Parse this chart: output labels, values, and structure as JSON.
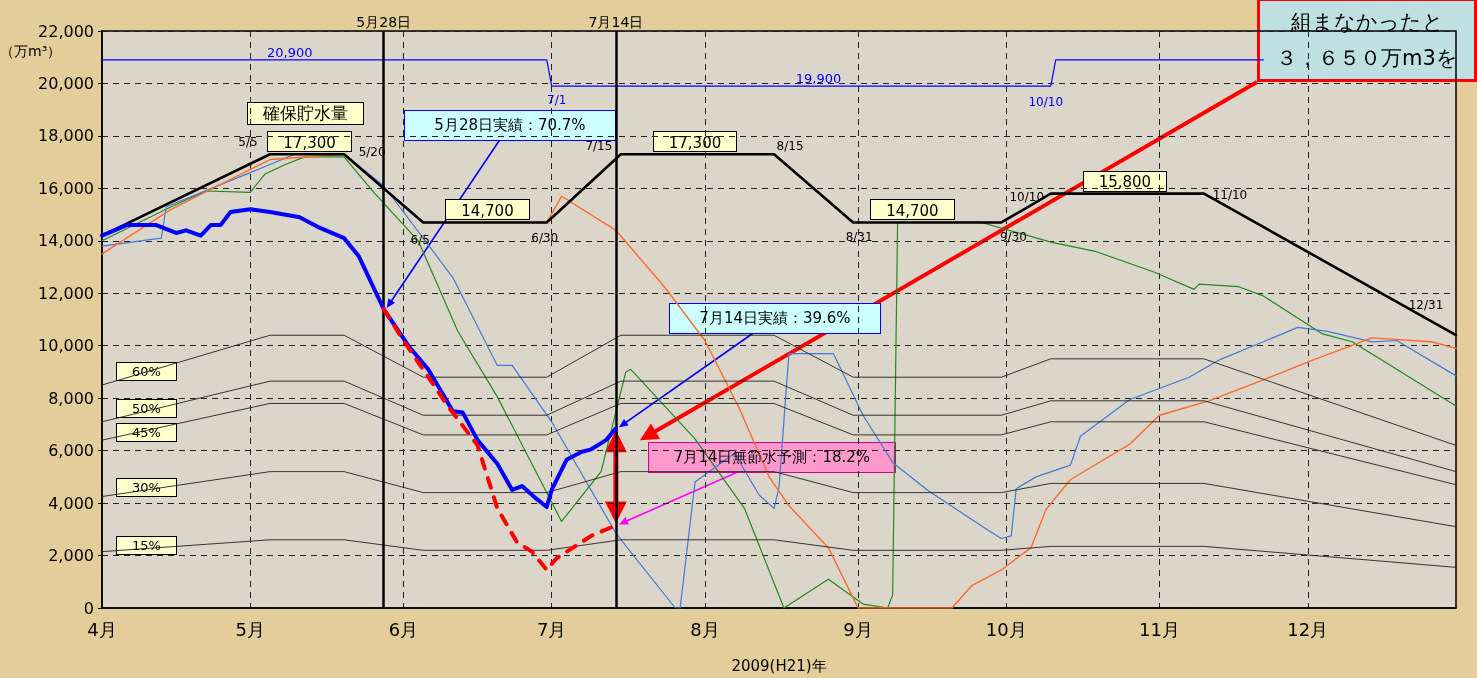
{
  "chart_data": {
    "type": "line",
    "xlabel": "2009(H21)年",
    "ylabel": "（万m³）",
    "xlim": [
      "2009-04-01",
      "2009-12-31"
    ],
    "xticks": [
      {
        "value": "2009-04-01",
        "label": "4月"
      },
      {
        "value": "2009-05-01",
        "label": "5月"
      },
      {
        "value": "2009-06-01",
        "label": "6月"
      },
      {
        "value": "2009-07-01",
        "label": "7月"
      },
      {
        "value": "2009-08-01",
        "label": "8月"
      },
      {
        "value": "2009-09-01",
        "label": "9月"
      },
      {
        "value": "2009-10-01",
        "label": "10月"
      },
      {
        "value": "2009-11-01",
        "label": "11月"
      },
      {
        "value": "2009-12-01",
        "label": "12月"
      }
    ],
    "ylim": [
      0,
      22000
    ],
    "yticks": [
      0,
      {
        "value": 2000,
        "label": "2,000"
      },
      {
        "value": 4000,
        "label": "4,000"
      },
      {
        "value": 6000,
        "label": "6,000"
      },
      {
        "value": 8000,
        "label": "8,000"
      },
      {
        "value": 10000,
        "label": "10,000"
      },
      {
        "value": 12000,
        "label": "12,000"
      },
      {
        "value": 14000,
        "label": "14,000"
      },
      {
        "value": 16000,
        "label": "16,000"
      },
      {
        "value": 18000,
        "label": "18,000"
      },
      {
        "value": 20000,
        "label": "20,000"
      },
      {
        "value": 22000,
        "label": "22,000"
      }
    ],
    "grid": true,
    "marker": "none",
    "series": [
      {
        "color": "#000000",
        "x": [
          "2009-04-01",
          "2009-05-05",
          "2009-05-13",
          "2009-05-20",
          "2009-06-05",
          "2009-06-18",
          "2009-06-30",
          "2009-07-15",
          "2009-07-30",
          "2009-08-15",
          "2009-08-31",
          "2009-09-12",
          "2009-09-30",
          "2009-10-10",
          "2009-10-25",
          "2009-11-10",
          "2009-12-31"
        ],
        "values": [
          14200,
          17300,
          17300,
          17300,
          14700,
          14700,
          14700,
          17300,
          17300,
          17300,
          14700,
          14700,
          14700,
          15800,
          15800,
          15800,
          10400
        ],
        "value_labels": [
          null,
          null,
          "17,300",
          null,
          null,
          "14,700",
          null,
          null,
          "17,300",
          null,
          null,
          "14,700",
          null,
          null,
          "15,800",
          null,
          null
        ]
      },
      {
        "color": "#0000ff",
        "x": [
          "2009-04-01",
          "2009-05-09",
          "2009-06-30",
          "2009-07-01",
          "2009-08-24",
          "2009-10-10",
          "2009-10-11",
          "2009-11-22"
        ],
        "values": [
          20900,
          20900,
          20900,
          19900,
          19900,
          19900,
          20900,
          20900
        ],
        "value_labels": [
          null,
          "20,900",
          null,
          null,
          "19,900",
          null,
          null,
          null
        ]
      },
      {
        "color": "#0000ff",
        "x": [
          "2009-04-01",
          "2009-04-06",
          "2009-04-12",
          "2009-04-16",
          "2009-04-18",
          "2009-04-21",
          "2009-04-23",
          "2009-04-25",
          "2009-04-27",
          "2009-05-01",
          "2009-05-05",
          "2009-05-11",
          "2009-05-15",
          "2009-05-20",
          "2009-05-23",
          "2009-05-28",
          "2009-06-02",
          "2009-06-06",
          "2009-06-11",
          "2009-06-13",
          "2009-06-16",
          "2009-06-20",
          "2009-06-23",
          "2009-06-25",
          "2009-06-28",
          "2009-06-30",
          "2009-07-01",
          "2009-07-04",
          "2009-07-07",
          "2009-07-09",
          "2009-07-12",
          "2009-07-14"
        ],
        "values": [
          14200,
          14600,
          14600,
          14300,
          14400,
          14200,
          14600,
          14600,
          15100,
          15200,
          15100,
          14900,
          14500,
          14100,
          13400,
          11400,
          10000,
          9100,
          7500,
          7450,
          6400,
          5500,
          4500,
          4650,
          4150,
          3850,
          4500,
          5650,
          5950,
          6050,
          6400,
          6850
        ]
      },
      {
        "color": "#ff0000",
        "line_style": "dashed",
        "x": [
          "2009-05-28",
          "2009-06-01",
          "2009-06-10",
          "2009-06-16",
          "2009-06-20",
          "2009-06-24",
          "2009-06-27",
          "2009-06-30",
          "2009-07-02",
          "2009-07-09",
          "2009-07-14"
        ],
        "values": [
          11400,
          10200,
          7700,
          6200,
          3800,
          2500,
          2150,
          1450,
          1900,
          2750,
          3150
        ]
      },
      {
        "color": "#1f8a1f",
        "x": [
          "2009-04-01",
          "2009-04-15",
          "2009-04-22",
          "2009-05-01",
          "2009-05-04",
          "2009-05-08",
          "2009-05-12",
          "2009-05-20",
          "2009-05-26",
          "2009-06-04",
          "2009-06-12",
          "2009-06-20",
          "2009-07-03",
          "2009-07-11",
          "2009-07-16",
          "2009-07-17",
          "2009-07-30",
          "2009-08-09",
          "2009-08-17",
          "2009-08-26",
          "2009-09-02",
          "2009-09-07",
          "2009-09-08",
          "2009-09-09",
          "2009-09-26",
          "2009-10-10",
          "2009-10-19",
          "2009-10-31",
          "2009-11-08",
          "2009-11-09",
          "2009-11-17",
          "2009-11-22",
          "2009-12-04",
          "2009-12-10",
          "2009-12-31"
        ],
        "values": [
          14000,
          15300,
          15900,
          15850,
          16550,
          16900,
          17200,
          17200,
          15850,
          14000,
          10550,
          8050,
          3300,
          5200,
          9000,
          9100,
          6450,
          3800,
          0,
          1100,
          150,
          0,
          500,
          14700,
          14700,
          13950,
          13600,
          12800,
          12150,
          12350,
          12250,
          11900,
          10450,
          10150,
          7700
        ]
      },
      {
        "color": "#3f7ad8",
        "x": [
          "2009-04-01",
          "2009-04-13",
          "2009-04-14",
          "2009-05-01",
          "2009-05-10",
          "2009-05-20",
          "2009-05-28",
          "2009-06-11",
          "2009-06-20",
          "2009-06-23",
          "2009-07-01",
          "2009-07-14",
          "2009-07-26",
          "2009-07-27",
          "2009-07-30",
          "2009-08-07",
          "2009-08-12",
          "2009-08-15",
          "2009-08-16",
          "2009-08-18",
          "2009-08-27",
          "2009-09-02",
          "2009-09-08",
          "2009-09-15",
          "2009-09-27",
          "2009-09-30",
          "2009-10-02",
          "2009-10-03",
          "2009-10-07",
          "2009-10-14",
          "2009-10-16",
          "2009-10-26",
          "2009-11-07",
          "2009-11-13",
          "2009-11-22",
          "2009-11-29",
          "2009-12-05",
          "2009-12-14",
          "2009-12-19",
          "2009-12-31"
        ],
        "values": [
          13800,
          14100,
          15300,
          16600,
          17300,
          17300,
          16100,
          12600,
          9250,
          9250,
          7100,
          2850,
          0,
          0,
          4800,
          5900,
          4300,
          3800,
          4600,
          9700,
          9700,
          7350,
          5550,
          4500,
          3000,
          2650,
          2750,
          4550,
          5000,
          5450,
          6550,
          7950,
          8800,
          9450,
          10150,
          10700,
          10550,
          10150,
          10200,
          8850
        ]
      },
      {
        "color": "#ff6a2a",
        "x": [
          "2009-04-01",
          "2009-04-15",
          "2009-05-05",
          "2009-05-20",
          "2009-06-05",
          "2009-06-30",
          "2009-07-03",
          "2009-07-14",
          "2009-07-24",
          "2009-08-01",
          "2009-08-08",
          "2009-08-14",
          "2009-08-18",
          "2009-08-26",
          "2009-09-01",
          "2009-09-20",
          "2009-09-24",
          "2009-09-30",
          "2009-10-06",
          "2009-10-09",
          "2009-10-14",
          "2009-10-26",
          "2009-11-01",
          "2009-11-11",
          "2009-11-22",
          "2009-12-02",
          "2009-12-14",
          "2009-12-26",
          "2009-12-31"
        ],
        "values": [
          13500,
          15200,
          17100,
          17300,
          14700,
          14700,
          15700,
          14400,
          12200,
          10200,
          7600,
          5000,
          3900,
          2300,
          0,
          0,
          850,
          1450,
          2300,
          3750,
          4900,
          6250,
          7350,
          7900,
          8700,
          9450,
          10300,
          10150,
          9900
        ]
      },
      {
        "color": "#222222",
        "x": [
          "2009-04-01",
          "2009-05-05",
          "2009-05-20",
          "2009-06-05",
          "2009-06-30",
          "2009-07-15",
          "2009-08-15",
          "2009-08-31",
          "2009-09-30",
          "2009-10-10",
          "2009-11-10",
          "2009-12-31"
        ],
        "values": [
          8500,
          10400,
          10400,
          8800,
          8800,
          10400,
          10400,
          8800,
          8800,
          9500,
          9500,
          6200
        ]
      },
      {
        "color": "#222222",
        "x": [
          "2009-04-01",
          "2009-05-05",
          "2009-05-20",
          "2009-06-05",
          "2009-06-30",
          "2009-07-15",
          "2009-08-15",
          "2009-08-31",
          "2009-09-30",
          "2009-10-10",
          "2009-11-10",
          "2009-12-31"
        ],
        "values": [
          7100,
          8650,
          8650,
          7350,
          7350,
          8650,
          8650,
          7350,
          7350,
          7900,
          7900,
          5200
        ]
      },
      {
        "color": "#222222",
        "x": [
          "2009-04-01",
          "2009-05-05",
          "2009-05-20",
          "2009-06-05",
          "2009-06-30",
          "2009-07-15",
          "2009-08-15",
          "2009-08-31",
          "2009-09-30",
          "2009-10-10",
          "2009-11-10",
          "2009-12-31"
        ],
        "values": [
          6400,
          7800,
          7800,
          6600,
          6600,
          7800,
          7800,
          6600,
          6600,
          7100,
          7100,
          4700
        ]
      },
      {
        "color": "#222222",
        "x": [
          "2009-04-01",
          "2009-05-05",
          "2009-05-20",
          "2009-06-05",
          "2009-06-30",
          "2009-07-15",
          "2009-08-15",
          "2009-08-31",
          "2009-09-30",
          "2009-10-10",
          "2009-11-10",
          "2009-12-31"
        ],
        "values": [
          4250,
          5200,
          5200,
          4400,
          4400,
          5200,
          5200,
          4400,
          4400,
          4750,
          4750,
          3100
        ]
      },
      {
        "color": "#222222",
        "x": [
          "2009-04-01",
          "2009-05-05",
          "2009-05-20",
          "2009-06-05",
          "2009-06-30",
          "2009-07-15",
          "2009-08-15",
          "2009-08-31",
          "2009-09-30",
          "2009-10-10",
          "2009-11-10",
          "2009-12-31"
        ],
        "values": [
          2150,
          2600,
          2600,
          2200,
          2200,
          2600,
          2600,
          2200,
          2200,
          2350,
          2350,
          1550
        ]
      }
    ],
    "ref_lines": [
      {
        "axis": "x",
        "value": "2009-05-28",
        "label": "5月28日",
        "color": "#000000"
      },
      {
        "axis": "x",
        "value": "2009-07-14",
        "label": "7月14日",
        "color": "#000000"
      }
    ],
    "annotations": [
      "確保貯水量",
      {
        "text": "60%",
        "x": "2009-04-10",
        "y": 9000
      },
      {
        "text": "50%",
        "x": "2009-04-10",
        "y": 7600
      },
      {
        "text": "45%",
        "x": "2009-04-10",
        "y": 6700
      },
      {
        "text": "30%",
        "x": "2009-04-10",
        "y": 4600
      },
      {
        "text": "15%",
        "x": "2009-04-10",
        "y": 2400
      },
      {
        "text": "5/5",
        "x": "2009-05-05",
        "y": 17300
      },
      {
        "text": "5/20",
        "x": "2009-05-20",
        "y": 17300
      },
      {
        "text": "6/5",
        "x": "2009-06-05",
        "y": 14700
      },
      {
        "text": "6/30",
        "x": "2009-06-30",
        "y": 14700
      },
      {
        "text": "7/15",
        "x": "2009-07-15",
        "y": 17300
      },
      {
        "text": "8/15",
        "x": "2009-08-15",
        "y": 17300
      },
      {
        "text": "8/31",
        "x": "2009-08-31",
        "y": 14700
      },
      {
        "text": "9/30",
        "x": "2009-09-30",
        "y": 14700
      },
      {
        "text": "10/10",
        "x": "2009-10-10",
        "y": 15800
      },
      {
        "text": "11/10",
        "x": "2009-11-10",
        "y": 15800
      },
      {
        "text": "12/31",
        "x": "2009-12-31",
        "y": 10400
      },
      {
        "text": "7/1",
        "x": "2009-07-01",
        "y": 19900
      },
      {
        "text": "10/10",
        "x": "2009-10-10",
        "y": 19900
      },
      "5月28日実績：70.7%",
      "7月14日実績：39.6%",
      "7月14日無節水予測：18.2%",
      "組まなかったと",
      "３，６５０万m3を"
    ]
  }
}
